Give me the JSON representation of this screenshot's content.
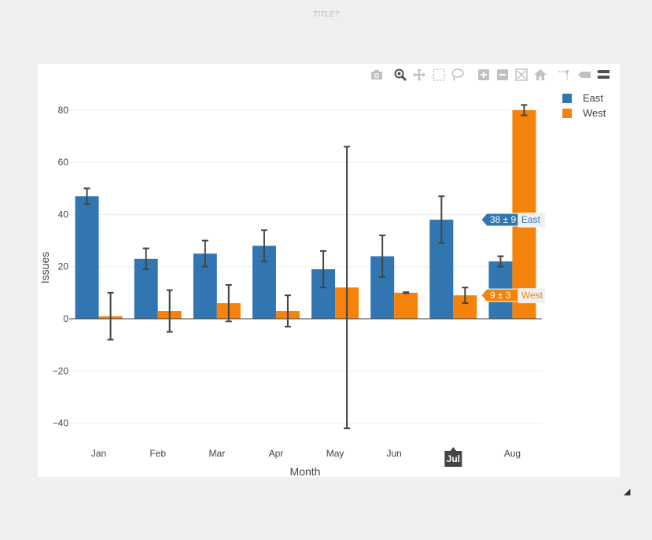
{
  "page": {
    "title": "TITLE?"
  },
  "modebar": {
    "buttons": [
      {
        "name": "camera-icon",
        "glyph": "📷"
      },
      {
        "name": "zoom-icon",
        "glyph": "🔍"
      },
      {
        "name": "pan-icon",
        "glyph": "✥"
      },
      {
        "name": "box-select-icon",
        "glyph": "⬚"
      },
      {
        "name": "lasso-select-icon",
        "glyph": "◌"
      },
      {
        "name": "zoom-in-icon",
        "glyph": "+"
      },
      {
        "name": "zoom-out-icon",
        "glyph": "−"
      },
      {
        "name": "autoscale-icon",
        "glyph": "⤢"
      },
      {
        "name": "home-icon",
        "glyph": "⌂"
      },
      {
        "name": "spike-lines-icon",
        "glyph": "⋰"
      },
      {
        "name": "hover-closest-icon",
        "glyph": "▭"
      },
      {
        "name": "hover-compare-icon",
        "glyph": "☰"
      }
    ]
  },
  "legend": {
    "items": [
      {
        "label": "East",
        "color": "#3276b1"
      },
      {
        "label": "West",
        "color": "#f5820a"
      }
    ]
  },
  "chart_data": {
    "type": "bar",
    "title": "TITLE?",
    "xlabel": "Month",
    "ylabel": "Issues",
    "categories": [
      "Jan",
      "Feb",
      "Mar",
      "Apr",
      "May",
      "Jun",
      "Jul",
      "Aug"
    ],
    "series": [
      {
        "name": "East",
        "color": "#3276b1",
        "values": [
          47,
          23,
          25,
          28,
          19,
          24,
          38,
          22
        ],
        "errors": [
          3,
          4,
          5,
          6,
          7,
          8,
          9,
          2
        ]
      },
      {
        "name": "West",
        "color": "#f5820a",
        "values": [
          1,
          3,
          6,
          3,
          12,
          10,
          9,
          80
        ],
        "errors": [
          9,
          8,
          7,
          6,
          54,
          0.2,
          3,
          2
        ]
      }
    ],
    "ylim": [
      -48,
      85
    ],
    "yticks": [
      -40,
      -20,
      0,
      20,
      40,
      60,
      80
    ],
    "ytick_labels": [
      "−40",
      "−20",
      "0",
      "20",
      "40",
      "60",
      "80"
    ],
    "grid": true,
    "legend_position": "top-right",
    "hover": {
      "category": "Jul",
      "labels": [
        {
          "series": "East",
          "text": "38 ± 9",
          "value": 38
        },
        {
          "series": "West",
          "text": "9 ± 3",
          "value": 9
        }
      ]
    }
  }
}
